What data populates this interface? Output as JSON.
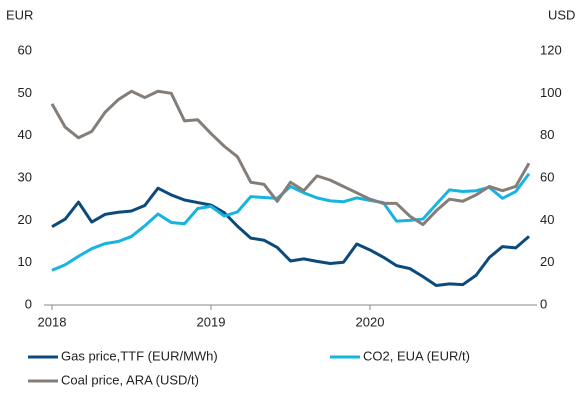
{
  "chart_data": {
    "type": "line",
    "y_label": "EUR",
    "y2_label": "USD",
    "categories": [
      "2018",
      null,
      null,
      null,
      null,
      null,
      null,
      null,
      null,
      null,
      null,
      null,
      "2019",
      null,
      null,
      null,
      null,
      null,
      null,
      null,
      null,
      null,
      null,
      null,
      "2020",
      null,
      null,
      null,
      null,
      null,
      null,
      null,
      null,
      null,
      null,
      null,
      null
    ],
    "ylim": [
      0,
      60
    ],
    "yticks": [
      0,
      10,
      20,
      30,
      40,
      50,
      60
    ],
    "y2lim": [
      0,
      120
    ],
    "y2ticks": [
      0,
      20,
      40,
      60,
      80,
      100,
      120
    ],
    "grid": false,
    "legend": "bottom",
    "series": [
      {
        "name": "Gas price,TTF (EUR/MWh)",
        "color": "#0d4a7c",
        "values": [
          18.5,
          20.3,
          24.3,
          19.6,
          21.4,
          21.9,
          22.2,
          23.5,
          27.6,
          26,
          24.8,
          24.2,
          23.6,
          21.8,
          18.6,
          15.8,
          15.3,
          13.6,
          10.4,
          10.9,
          10.3,
          9.8,
          10.1,
          14.4,
          13.0,
          11.3,
          9.3,
          8.6,
          6.7,
          4.6,
          5.0,
          4.8,
          7.0,
          11.2,
          13.8,
          13.5,
          16.2
        ]
      },
      {
        "name": "CO2, EUA (EUR/t)",
        "color": "#18b4e0",
        "values": [
          8.2,
          9.5,
          11.5,
          13.3,
          14.5,
          15,
          16.2,
          18.7,
          21.5,
          19.5,
          19.2,
          22.8,
          23.3,
          21,
          22,
          25.6,
          25.4,
          25.2,
          28,
          26.5,
          25.3,
          24.6,
          24.4,
          25.3,
          24.7,
          24.2,
          19.8,
          20.0,
          20.3,
          23.8,
          27.2,
          26.8,
          27.0,
          27.8,
          25.2,
          26.8,
          31
        ]
      },
      {
        "name": "Coal price, ARA (USD/t)",
        "color": "#857d78",
        "axis": "y2",
        "values": [
          95,
          84,
          79,
          82,
          91,
          97,
          101,
          98,
          101,
          100,
          87,
          87.5,
          81,
          75,
          70,
          58,
          57,
          49,
          58,
          54,
          61,
          59,
          56,
          53,
          50,
          48,
          48,
          42,
          38,
          44.5,
          50,
          49,
          52,
          56,
          54,
          56,
          67
        ]
      }
    ]
  }
}
